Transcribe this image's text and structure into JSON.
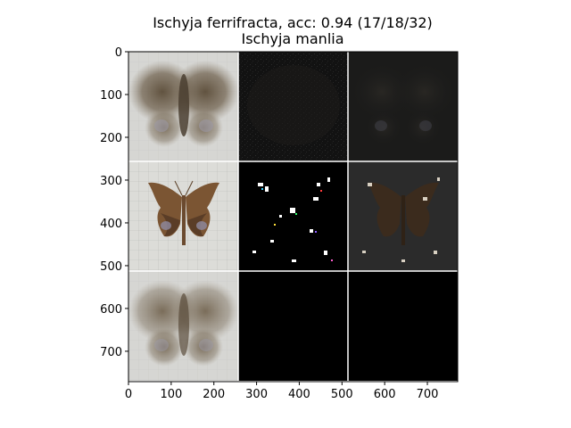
{
  "figure": {
    "title_line1": "Ischyja ferrifracta, acc: 0.94 (17/18/32)",
    "title_line2": "Ischyja manlia",
    "x_ticks": [
      "0",
      "100",
      "200",
      "300",
      "400",
      "500",
      "600",
      "700"
    ],
    "y_ticks": [
      "0",
      "100",
      "200",
      "300",
      "400",
      "500",
      "600",
      "700"
    ],
    "x_tick_values": [
      0,
      100,
      200,
      300,
      400,
      500,
      600,
      700
    ],
    "y_tick_values": [
      0,
      100,
      200,
      300,
      400,
      500,
      600,
      700
    ],
    "image_extent": [
      0,
      771,
      771,
      0
    ],
    "grid": {
      "rows": 3,
      "cols": 3,
      "cell_size": 257
    },
    "colors": {
      "photo_bg": "#d7d8d4",
      "moth_brown": "#5d4f3c",
      "dark_panel": "#141414",
      "black_panel": "#000000"
    }
  }
}
